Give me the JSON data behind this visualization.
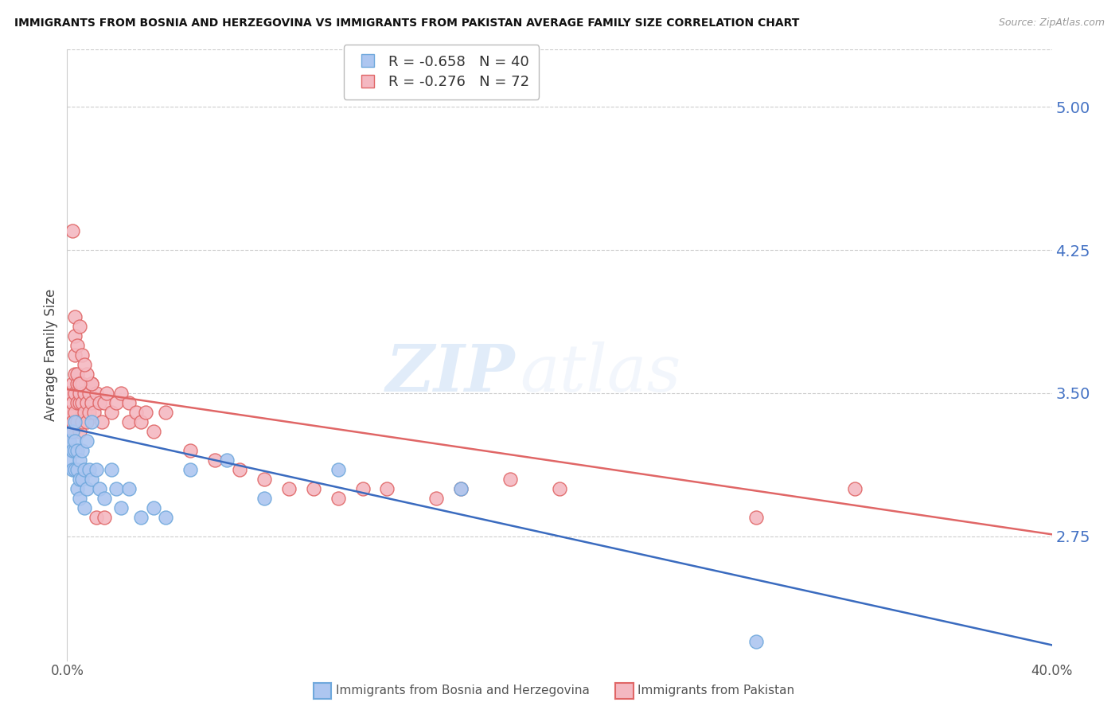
{
  "title": "IMMIGRANTS FROM BOSNIA AND HERZEGOVINA VS IMMIGRANTS FROM PAKISTAN AVERAGE FAMILY SIZE CORRELATION CHART",
  "source": "Source: ZipAtlas.com",
  "ylabel": "Average Family Size",
  "yticks_right": [
    2.75,
    3.5,
    4.25,
    5.0
  ],
  "ytick_color": "#4472c4",
  "xlim": [
    0.0,
    0.4
  ],
  "ylim": [
    2.1,
    5.3
  ],
  "bosnia_label": "Immigrants from Bosnia and Herzegovina",
  "pakistan_label": "Immigrants from Pakistan",
  "bosnia_R": -0.658,
  "bosnia_N": 40,
  "pakistan_R": -0.276,
  "pakistan_N": 72,
  "bosnia_fill_color": "#adc6f0",
  "bosnia_edge_color": "#6fa8dc",
  "pakistan_fill_color": "#f4b8c1",
  "pakistan_edge_color": "#e06666",
  "trend_blue": "#3a6bbf",
  "trend_pink": "#e06666",
  "watermark_zip": "ZIP",
  "watermark_atlas": "atlas",
  "background_color": "#ffffff",
  "bosnia_x": [
    0.001,
    0.001,
    0.002,
    0.002,
    0.002,
    0.003,
    0.003,
    0.003,
    0.003,
    0.004,
    0.004,
    0.004,
    0.005,
    0.005,
    0.005,
    0.006,
    0.006,
    0.007,
    0.007,
    0.008,
    0.008,
    0.009,
    0.01,
    0.01,
    0.012,
    0.013,
    0.015,
    0.018,
    0.02,
    0.022,
    0.025,
    0.03,
    0.035,
    0.04,
    0.05,
    0.065,
    0.08,
    0.11,
    0.16,
    0.28
  ],
  "bosnia_y": [
    3.25,
    3.15,
    3.3,
    3.1,
    3.2,
    3.35,
    3.2,
    3.1,
    3.25,
    3.2,
    3.1,
    3.0,
    3.15,
    3.05,
    2.95,
    3.2,
    3.05,
    3.1,
    2.9,
    3.25,
    3.0,
    3.1,
    3.35,
    3.05,
    3.1,
    3.0,
    2.95,
    3.1,
    3.0,
    2.9,
    3.0,
    2.85,
    2.9,
    2.85,
    3.1,
    3.15,
    2.95,
    3.1,
    3.0,
    2.2
  ],
  "pakistan_x": [
    0.001,
    0.001,
    0.001,
    0.002,
    0.002,
    0.002,
    0.003,
    0.003,
    0.003,
    0.003,
    0.004,
    0.004,
    0.004,
    0.004,
    0.005,
    0.005,
    0.005,
    0.005,
    0.006,
    0.006,
    0.006,
    0.007,
    0.007,
    0.008,
    0.008,
    0.009,
    0.009,
    0.01,
    0.01,
    0.011,
    0.012,
    0.013,
    0.014,
    0.015,
    0.016,
    0.018,
    0.02,
    0.022,
    0.025,
    0.025,
    0.028,
    0.03,
    0.032,
    0.035,
    0.04,
    0.05,
    0.06,
    0.07,
    0.08,
    0.09,
    0.1,
    0.11,
    0.12,
    0.13,
    0.15,
    0.16,
    0.18,
    0.2,
    0.28,
    0.32,
    0.01,
    0.005,
    0.008,
    0.003,
    0.004,
    0.006,
    0.007,
    0.002,
    0.003,
    0.005,
    0.012,
    0.015
  ],
  "pakistan_y": [
    3.4,
    3.5,
    3.3,
    3.45,
    3.55,
    3.35,
    3.6,
    3.7,
    3.5,
    3.4,
    3.55,
    3.45,
    3.6,
    3.35,
    3.45,
    3.55,
    3.3,
    3.5,
    3.45,
    3.35,
    3.55,
    3.5,
    3.4,
    3.45,
    3.35,
    3.5,
    3.4,
    3.55,
    3.45,
    3.4,
    3.5,
    3.45,
    3.35,
    3.45,
    3.5,
    3.4,
    3.45,
    3.5,
    3.35,
    3.45,
    3.4,
    3.35,
    3.4,
    3.3,
    3.4,
    3.2,
    3.15,
    3.1,
    3.05,
    3.0,
    3.0,
    2.95,
    3.0,
    3.0,
    2.95,
    3.0,
    3.05,
    3.0,
    2.85,
    3.0,
    3.55,
    3.55,
    3.6,
    3.8,
    3.75,
    3.7,
    3.65,
    4.35,
    3.9,
    3.85,
    2.85,
    2.85
  ],
  "bosnia_trend_x0": 0.0,
  "bosnia_trend_y0": 3.32,
  "bosnia_trend_x1": 0.4,
  "bosnia_trend_y1": 2.18,
  "pakistan_trend_x0": 0.0,
  "pakistan_trend_y0": 3.52,
  "pakistan_trend_x1": 0.4,
  "pakistan_trend_y1": 2.76
}
